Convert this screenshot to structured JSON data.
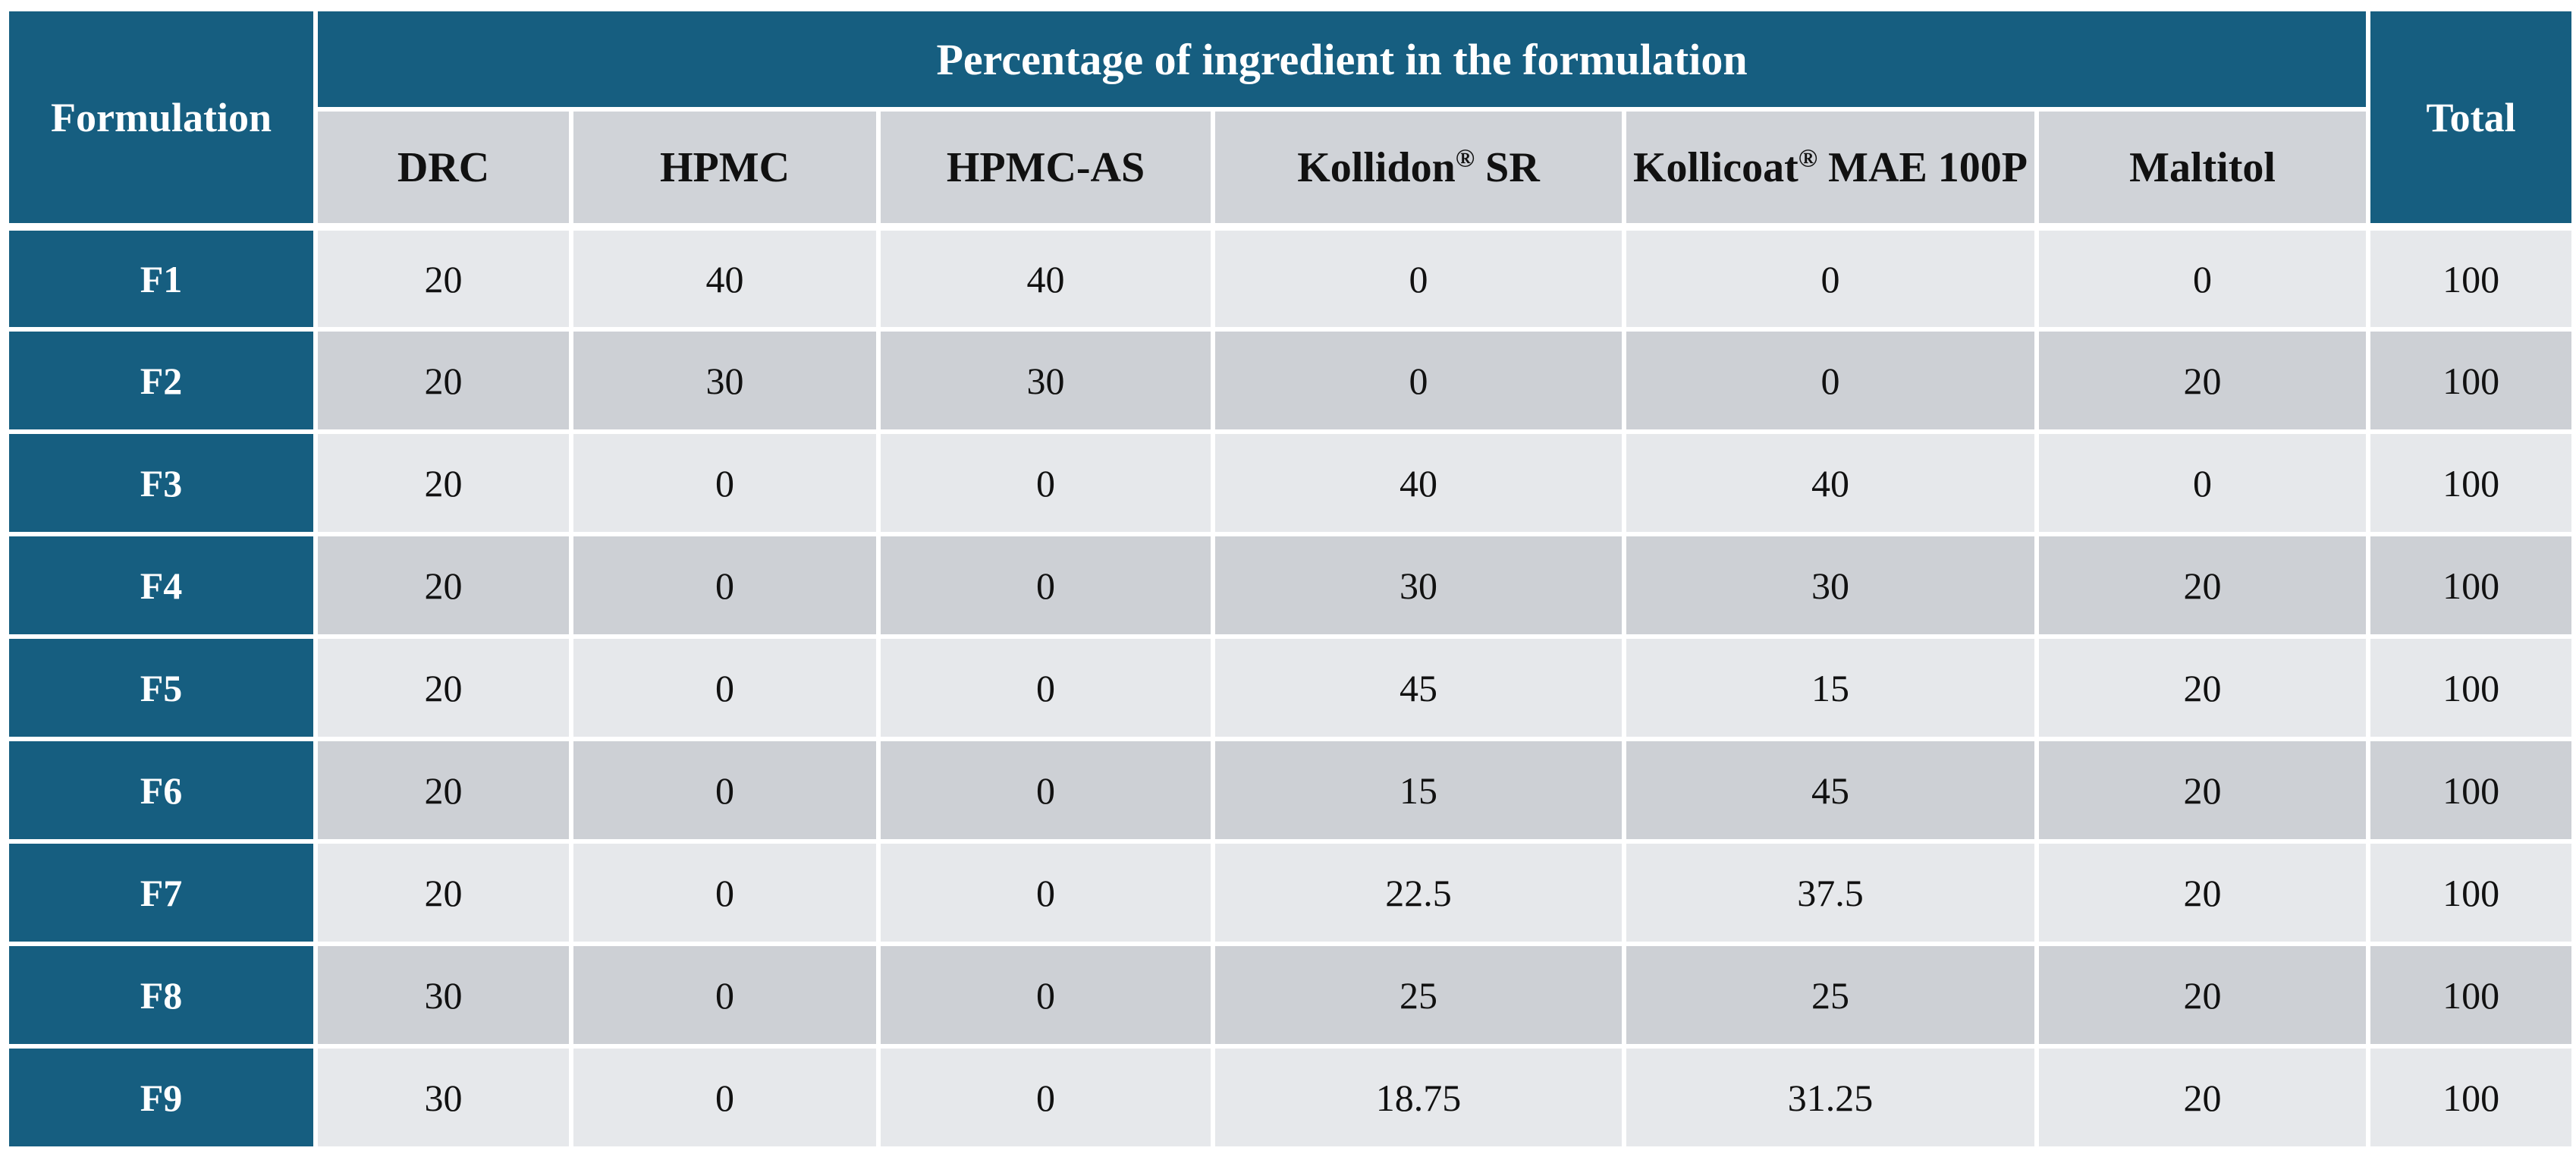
{
  "table": {
    "row_header": "Formulation",
    "group_header": "Percentage of ingredient in the formulation",
    "total_header": "Total",
    "columns": [
      {
        "text": "DRC",
        "sup": ""
      },
      {
        "text": "HPMC",
        "sup": ""
      },
      {
        "text": "HPMC-AS",
        "sup": ""
      },
      {
        "text": "Kollidon",
        "sup": "®",
        "after": " SR"
      },
      {
        "text": "Kollicoat",
        "sup": "®",
        "after": " MAE 100P"
      },
      {
        "text": "Maltitol",
        "sup": ""
      }
    ],
    "rows": [
      {
        "label": "F1",
        "values": [
          "20",
          "40",
          "40",
          "0",
          "0",
          "0"
        ],
        "total": "100"
      },
      {
        "label": "F2",
        "values": [
          "20",
          "30",
          "30",
          "0",
          "0",
          "20"
        ],
        "total": "100"
      },
      {
        "label": "F3",
        "values": [
          "20",
          "0",
          "0",
          "40",
          "40",
          "0"
        ],
        "total": "100"
      },
      {
        "label": "F4",
        "values": [
          "20",
          "0",
          "0",
          "30",
          "30",
          "20"
        ],
        "total": "100"
      },
      {
        "label": "F5",
        "values": [
          "20",
          "0",
          "0",
          "45",
          "15",
          "20"
        ],
        "total": "100"
      },
      {
        "label": "F6",
        "values": [
          "20",
          "0",
          "0",
          "15",
          "45",
          "20"
        ],
        "total": "100"
      },
      {
        "label": "F7",
        "values": [
          "20",
          "0",
          "0",
          "22.5",
          "37.5",
          "20"
        ],
        "total": "100"
      },
      {
        "label": "F8",
        "values": [
          "30",
          "0",
          "0",
          "25",
          "25",
          "20"
        ],
        "total": "100"
      },
      {
        "label": "F9",
        "values": [
          "30",
          "0",
          "0",
          "18.75",
          "31.25",
          "20"
        ],
        "total": "100"
      }
    ]
  },
  "colors": {
    "header_dark": "#165e80",
    "subheader": "#d0d3d8",
    "row_light": "#e6e8eb",
    "row_dark": "#cdd0d5"
  }
}
